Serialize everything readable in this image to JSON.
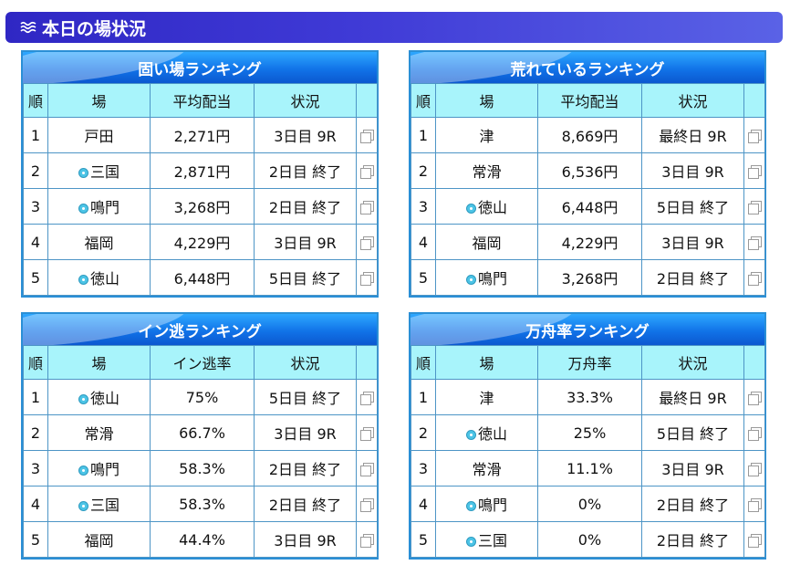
{
  "page_title": "本日の場状況",
  "colors": {
    "header_bar": "#3f3ad6",
    "panel_title": "#1173e8",
    "table_header": "#a8f4fb",
    "border": "#2a8fd6"
  },
  "panels": [
    {
      "title": "固い場ランキング",
      "headers": {
        "rank": "順",
        "venue": "場",
        "value": "平均配当",
        "status": "状況"
      },
      "rows": [
        {
          "rank": "1",
          "venue": "戸田",
          "badge": false,
          "value": "2,271円",
          "status": "3日目 9R"
        },
        {
          "rank": "2",
          "venue": "三国",
          "badge": true,
          "value": "2,871円",
          "status": "2日目 終了"
        },
        {
          "rank": "3",
          "venue": "鳴門",
          "badge": true,
          "value": "3,268円",
          "status": "2日目 終了"
        },
        {
          "rank": "4",
          "venue": "福岡",
          "badge": false,
          "value": "4,229円",
          "status": "3日目 9R"
        },
        {
          "rank": "5",
          "venue": "徳山",
          "badge": true,
          "value": "6,448円",
          "status": "5日目 終了"
        }
      ]
    },
    {
      "title": "荒れているランキング",
      "headers": {
        "rank": "順",
        "venue": "場",
        "value": "平均配当",
        "status": "状況"
      },
      "rows": [
        {
          "rank": "1",
          "venue": "津",
          "badge": false,
          "value": "8,669円",
          "status": "最終日 9R"
        },
        {
          "rank": "2",
          "venue": "常滑",
          "badge": false,
          "value": "6,536円",
          "status": "3日目 9R"
        },
        {
          "rank": "3",
          "venue": "徳山",
          "badge": true,
          "value": "6,448円",
          "status": "5日目 終了"
        },
        {
          "rank": "4",
          "venue": "福岡",
          "badge": false,
          "value": "4,229円",
          "status": "3日目 9R"
        },
        {
          "rank": "5",
          "venue": "鳴門",
          "badge": true,
          "value": "3,268円",
          "status": "2日目 終了"
        }
      ]
    },
    {
      "title": "イン逃ランキング",
      "headers": {
        "rank": "順",
        "venue": "場",
        "value": "イン逃率",
        "status": "状況"
      },
      "rows": [
        {
          "rank": "1",
          "venue": "徳山",
          "badge": true,
          "value": "75%",
          "status": "5日目 終了"
        },
        {
          "rank": "2",
          "venue": "常滑",
          "badge": false,
          "value": "66.7%",
          "status": "3日目 9R"
        },
        {
          "rank": "3",
          "venue": "鳴門",
          "badge": true,
          "value": "58.3%",
          "status": "2日目 終了"
        },
        {
          "rank": "4",
          "venue": "三国",
          "badge": true,
          "value": "58.3%",
          "status": "2日目 終了"
        },
        {
          "rank": "5",
          "venue": "福岡",
          "badge": false,
          "value": "44.4%",
          "status": "3日目 9R"
        }
      ]
    },
    {
      "title": "万舟率ランキング",
      "headers": {
        "rank": "順",
        "venue": "場",
        "value": "万舟率",
        "status": "状況"
      },
      "rows": [
        {
          "rank": "1",
          "venue": "津",
          "badge": false,
          "value": "33.3%",
          "status": "最終日 9R"
        },
        {
          "rank": "2",
          "venue": "徳山",
          "badge": true,
          "value": "25%",
          "status": "5日目 終了"
        },
        {
          "rank": "3",
          "venue": "常滑",
          "badge": false,
          "value": "11.1%",
          "status": "3日目 9R"
        },
        {
          "rank": "4",
          "venue": "鳴門",
          "badge": true,
          "value": "0%",
          "status": "2日目 終了"
        },
        {
          "rank": "5",
          "venue": "三国",
          "badge": true,
          "value": "0%",
          "status": "2日目 終了"
        }
      ]
    }
  ]
}
